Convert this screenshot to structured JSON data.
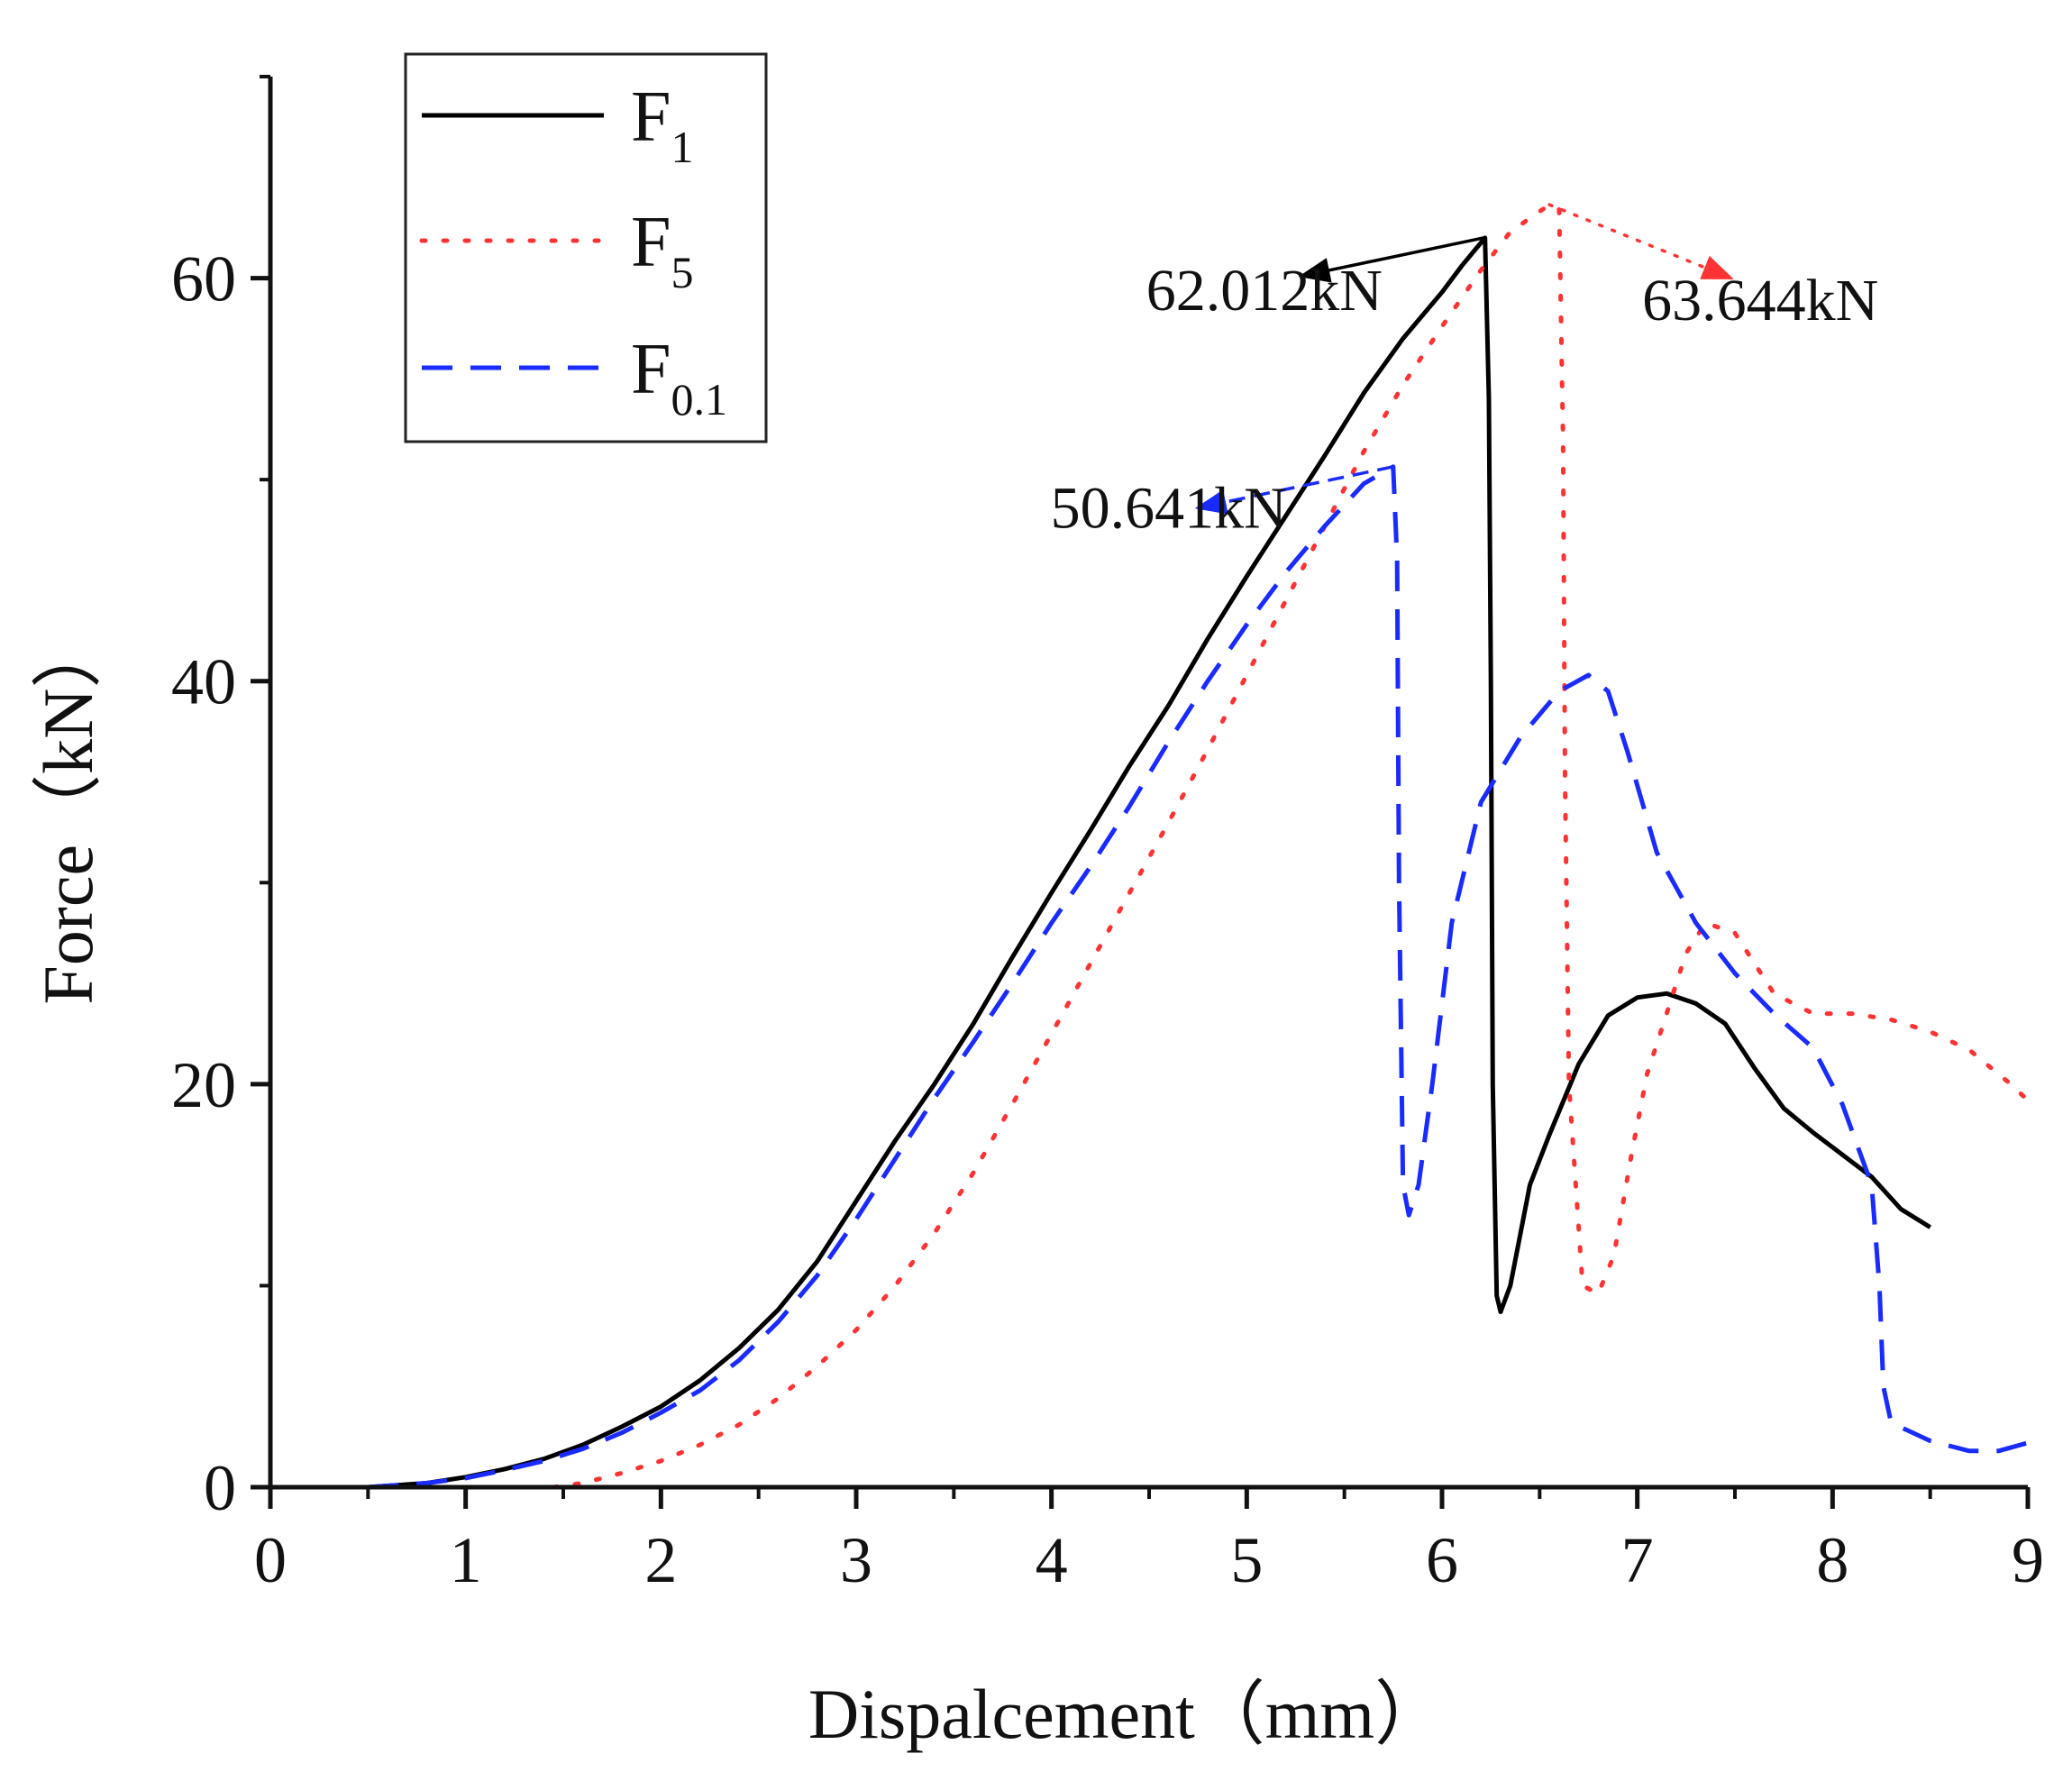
{
  "chart_data": {
    "type": "line",
    "title": "",
    "xlabel": "Dispalcement（mm）",
    "ylabel": "Force（kN）",
    "xlim": [
      0,
      9
    ],
    "ylim": [
      0,
      70
    ],
    "x_ticks": [
      "0",
      "1",
      "2",
      "3",
      "4",
      "5",
      "6",
      "7",
      "8",
      "9"
    ],
    "y_ticks": [
      "0",
      "20",
      "40",
      "60"
    ],
    "grid": false,
    "legend_position": "top-left",
    "series": [
      {
        "name": "F1",
        "base": "F",
        "subscript": "1",
        "color": "#000000",
        "style": "solid",
        "points": [
          [
            0.5,
            0
          ],
          [
            0.8,
            0.2
          ],
          [
            1.0,
            0.5
          ],
          [
            1.2,
            0.9
          ],
          [
            1.4,
            1.4
          ],
          [
            1.6,
            2.1
          ],
          [
            1.8,
            3.0
          ],
          [
            2.0,
            4.0
          ],
          [
            2.2,
            5.3
          ],
          [
            2.4,
            6.9
          ],
          [
            2.6,
            8.8
          ],
          [
            2.8,
            11.2
          ],
          [
            3.0,
            14.2
          ],
          [
            3.2,
            17.2
          ],
          [
            3.4,
            20.0
          ],
          [
            3.6,
            23.0
          ],
          [
            3.8,
            26.3
          ],
          [
            4.0,
            29.5
          ],
          [
            4.2,
            32.6
          ],
          [
            4.4,
            35.8
          ],
          [
            4.6,
            38.8
          ],
          [
            4.8,
            42.1
          ],
          [
            5.0,
            45.2
          ],
          [
            5.2,
            48.2
          ],
          [
            5.4,
            51.2
          ],
          [
            5.6,
            54.3
          ],
          [
            5.8,
            57.0
          ],
          [
            6.0,
            59.3
          ],
          [
            6.1,
            60.6
          ],
          [
            6.22,
            62.0
          ],
          [
            6.24,
            54
          ],
          [
            6.25,
            40
          ],
          [
            6.26,
            20
          ],
          [
            6.28,
            9.5
          ],
          [
            6.3,
            8.7
          ],
          [
            6.35,
            10
          ],
          [
            6.45,
            15
          ],
          [
            6.55,
            17.5
          ],
          [
            6.7,
            21
          ],
          [
            6.85,
            23.4
          ],
          [
            7.0,
            24.3
          ],
          [
            7.15,
            24.5
          ],
          [
            7.3,
            24.0
          ],
          [
            7.45,
            23.0
          ],
          [
            7.6,
            20.8
          ],
          [
            7.75,
            18.8
          ],
          [
            7.9,
            17.6
          ],
          [
            8.05,
            16.5
          ],
          [
            8.2,
            15.4
          ],
          [
            8.35,
            13.8
          ],
          [
            8.5,
            12.9
          ]
        ]
      },
      {
        "name": "F5",
        "base": "F",
        "subscript": "5",
        "color": "#ff3333",
        "style": "dotted",
        "points": [
          [
            1.45,
            0
          ],
          [
            1.6,
            0.2
          ],
          [
            1.8,
            0.7
          ],
          [
            2.0,
            1.3
          ],
          [
            2.2,
            2.1
          ],
          [
            2.4,
            3.1
          ],
          [
            2.6,
            4.4
          ],
          [
            2.8,
            6.0
          ],
          [
            3.0,
            7.8
          ],
          [
            3.2,
            10.0
          ],
          [
            3.4,
            12.6
          ],
          [
            3.6,
            15.6
          ],
          [
            3.8,
            19.0
          ],
          [
            4.0,
            22.5
          ],
          [
            4.2,
            26.0
          ],
          [
            4.4,
            29.5
          ],
          [
            4.6,
            33.0
          ],
          [
            4.8,
            36.6
          ],
          [
            5.0,
            40.3
          ],
          [
            5.2,
            44.0
          ],
          [
            5.4,
            47.7
          ],
          [
            5.6,
            51.4
          ],
          [
            5.8,
            54.7
          ],
          [
            6.0,
            57.6
          ],
          [
            6.2,
            60.4
          ],
          [
            6.35,
            62.3
          ],
          [
            6.55,
            63.644
          ],
          [
            6.6,
            63.4
          ],
          [
            6.62,
            52
          ],
          [
            6.63,
            35
          ],
          [
            6.65,
            20
          ],
          [
            6.72,
            10
          ],
          [
            6.8,
            9.6
          ],
          [
            6.88,
            11.5
          ],
          [
            6.97,
            16.5
          ],
          [
            7.05,
            20.5
          ],
          [
            7.15,
            23.5
          ],
          [
            7.25,
            26.5
          ],
          [
            7.35,
            28.0
          ],
          [
            7.5,
            27.5
          ],
          [
            7.7,
            24.5
          ],
          [
            7.9,
            23.5
          ],
          [
            8.1,
            23.5
          ],
          [
            8.3,
            23.2
          ],
          [
            8.5,
            22.6
          ],
          [
            8.7,
            21.7
          ],
          [
            8.9,
            20.1
          ],
          [
            9.0,
            19.2
          ]
        ]
      },
      {
        "name": "F0.1",
        "base": "F",
        "subscript": "0.1",
        "color": "#1a2bff",
        "style": "dashed",
        "points": [
          [
            0.5,
            0
          ],
          [
            0.8,
            0.2
          ],
          [
            1.0,
            0.45
          ],
          [
            1.2,
            0.85
          ],
          [
            1.4,
            1.3
          ],
          [
            1.6,
            1.9
          ],
          [
            1.8,
            2.7
          ],
          [
            2.0,
            3.7
          ],
          [
            2.2,
            4.8
          ],
          [
            2.4,
            6.3
          ],
          [
            2.6,
            8.2
          ],
          [
            2.8,
            10.5
          ],
          [
            3.0,
            13.3
          ],
          [
            3.2,
            16.3
          ],
          [
            3.4,
            19.3
          ],
          [
            3.6,
            22.1
          ],
          [
            3.8,
            25.0
          ],
          [
            4.0,
            28.0
          ],
          [
            4.2,
            30.8
          ],
          [
            4.4,
            33.8
          ],
          [
            4.6,
            37.0
          ],
          [
            4.8,
            40.0
          ],
          [
            5.0,
            42.8
          ],
          [
            5.2,
            45.4
          ],
          [
            5.4,
            47.7
          ],
          [
            5.6,
            49.8
          ],
          [
            5.75,
            50.641
          ],
          [
            5.77,
            46
          ],
          [
            5.78,
            30
          ],
          [
            5.8,
            15
          ],
          [
            5.83,
            13.5
          ],
          [
            5.88,
            15
          ],
          [
            5.95,
            20
          ],
          [
            6.05,
            28
          ],
          [
            6.2,
            34
          ],
          [
            6.4,
            37.2
          ],
          [
            6.6,
            39.5
          ],
          [
            6.75,
            40.3
          ],
          [
            6.85,
            39.5
          ],
          [
            6.95,
            36.5
          ],
          [
            7.1,
            31.5
          ],
          [
            7.3,
            28.0
          ],
          [
            7.5,
            25.5
          ],
          [
            7.7,
            23.5
          ],
          [
            7.9,
            21.8
          ],
          [
            8.05,
            19.0
          ],
          [
            8.2,
            15.0
          ],
          [
            8.24,
            10
          ],
          [
            8.26,
            5
          ],
          [
            8.3,
            3.2
          ],
          [
            8.5,
            2.3
          ],
          [
            8.7,
            1.8
          ],
          [
            8.85,
            1.8
          ],
          [
            9.0,
            2.2
          ]
        ]
      }
    ],
    "annotations": [
      {
        "text": "62.012kN",
        "series": "F1",
        "x": 6.22,
        "y": 62.012,
        "label_x": 5.09,
        "label_y": 59.4,
        "tip_x": 5.28,
        "tip_y": 60.1
      },
      {
        "text": "63.644kN",
        "series": "F5",
        "x": 6.55,
        "y": 63.644,
        "label_x": 7.63,
        "label_y": 58.9,
        "tip_x": 7.48,
        "tip_y": 60.0
      },
      {
        "text": "50.641kN",
        "series": "F0.1",
        "x": 5.75,
        "y": 50.641,
        "label_x": 4.6,
        "label_y": 48.6,
        "tip_x": 4.75,
        "tip_y": 48.6
      }
    ]
  }
}
